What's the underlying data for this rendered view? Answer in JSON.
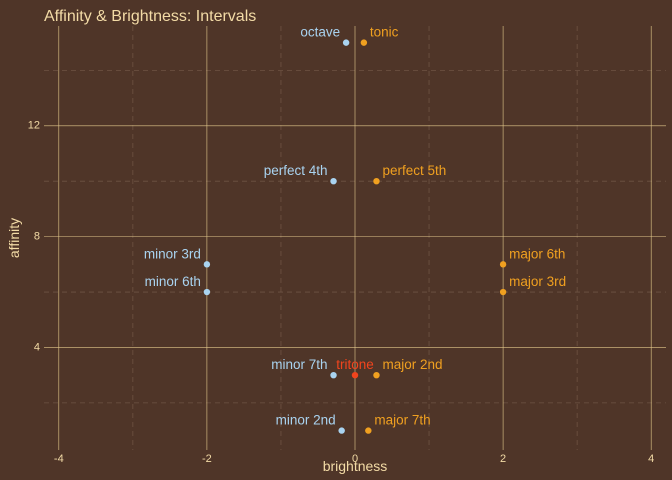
{
  "colors": {
    "background": "#4f3528",
    "title": "#f3dba6",
    "axis_text": "#f3dba6",
    "grid_major": "#e3c98c",
    "grid_minor": "#6e5343",
    "blue": "#a9d3f0",
    "orange": "#f0a020",
    "red": "#f2441d"
  },
  "chart_data": {
    "type": "scatter",
    "title": "Affinity & Brightness: Intervals",
    "xlabel": "brightness",
    "ylabel": "affinity",
    "xlim": [
      -4.2,
      4.2
    ],
    "ylim": [
      0.3,
      15.6
    ],
    "x_major_ticks": [
      -4,
      -2,
      0,
      2,
      4
    ],
    "x_tick_labels": [
      "-4",
      "-2",
      "0",
      "2",
      "4"
    ],
    "x_minor_ticks": [
      -3,
      -1,
      1,
      3
    ],
    "y_major_ticks": [
      4,
      8,
      12
    ],
    "y_tick_labels": [
      "4",
      "8",
      "12"
    ],
    "y_minor_ticks": [
      2,
      6,
      10,
      14
    ],
    "grid": true,
    "points": [
      {
        "label": "octave",
        "x": -0.12,
        "y": 15,
        "color": "blue",
        "label_side": "left"
      },
      {
        "label": "tonic",
        "x": 0.12,
        "y": 15,
        "color": "orange",
        "label_side": "right"
      },
      {
        "label": "perfect 4th",
        "x": -0.29,
        "y": 10,
        "color": "blue",
        "label_side": "left"
      },
      {
        "label": "perfect 5th",
        "x": 0.29,
        "y": 10,
        "color": "orange",
        "label_side": "right"
      },
      {
        "label": "minor 3rd",
        "x": -2,
        "y": 7,
        "color": "blue",
        "label_side": "left"
      },
      {
        "label": "major 6th",
        "x": 2,
        "y": 7,
        "color": "orange",
        "label_side": "right"
      },
      {
        "label": "minor 6th",
        "x": -2,
        "y": 6,
        "color": "blue",
        "label_side": "left"
      },
      {
        "label": "major 3rd",
        "x": 2,
        "y": 6,
        "color": "orange",
        "label_side": "right"
      },
      {
        "label": "minor 7th",
        "x": -0.29,
        "y": 3,
        "color": "blue",
        "label_side": "left"
      },
      {
        "label": "tritone",
        "x": 0,
        "y": 3,
        "color": "red",
        "label_side": "center"
      },
      {
        "label": "major 2nd",
        "x": 0.29,
        "y": 3,
        "color": "orange",
        "label_side": "right"
      },
      {
        "label": "minor 2nd",
        "x": -0.18,
        "y": 1,
        "color": "blue",
        "label_side": "left"
      },
      {
        "label": "major 7th",
        "x": 0.18,
        "y": 1,
        "color": "orange",
        "label_side": "right"
      }
    ]
  }
}
